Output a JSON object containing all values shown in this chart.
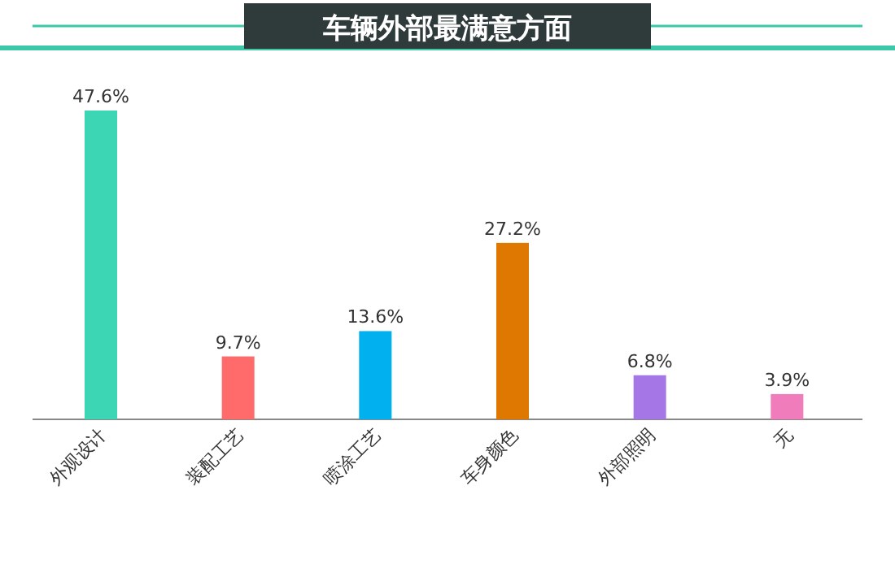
{
  "chart_data": {
    "type": "bar",
    "title": "车辆外部最满意方面",
    "categories": [
      "外观设计",
      "装配工艺",
      "喷涂工艺",
      "车身颜色",
      "外部照明",
      "无"
    ],
    "values": [
      47.6,
      9.7,
      13.6,
      27.2,
      6.8,
      3.9
    ],
    "colors": [
      "#3dd6b4",
      "#ff6b6b",
      "#00b0ef",
      "#de7800",
      "#a476e6",
      "#f07cbc"
    ],
    "value_labels": [
      "47.6%",
      "9.7%",
      "13.6%",
      "27.2%",
      "6.8%",
      "3.9%"
    ]
  }
}
